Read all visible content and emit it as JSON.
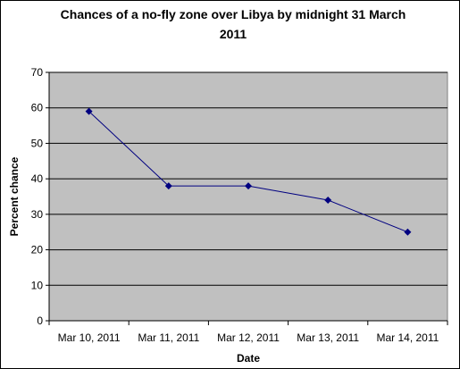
{
  "chart_data": {
    "type": "line",
    "title": "Chances of a no-fly zone over Libya by midnight 31 March 2011",
    "xlabel": "Date",
    "ylabel": "Percent chance",
    "categories": [
      "Mar 10, 2011",
      "Mar 11, 2011",
      "Mar 12, 2011",
      "Mar 13, 2011",
      "Mar 14, 2011"
    ],
    "series": [
      {
        "values": [
          59,
          38,
          38,
          34,
          25
        ]
      }
    ],
    "ylim": [
      0,
      70
    ],
    "yticks": [
      0,
      10,
      20,
      30,
      40,
      50,
      60,
      70
    ],
    "grid": true,
    "legend": "none",
    "colors": {
      "plot_background": "#c0c0c0",
      "line": "#000080",
      "marker": "#000080",
      "gridline": "#000000"
    }
  }
}
